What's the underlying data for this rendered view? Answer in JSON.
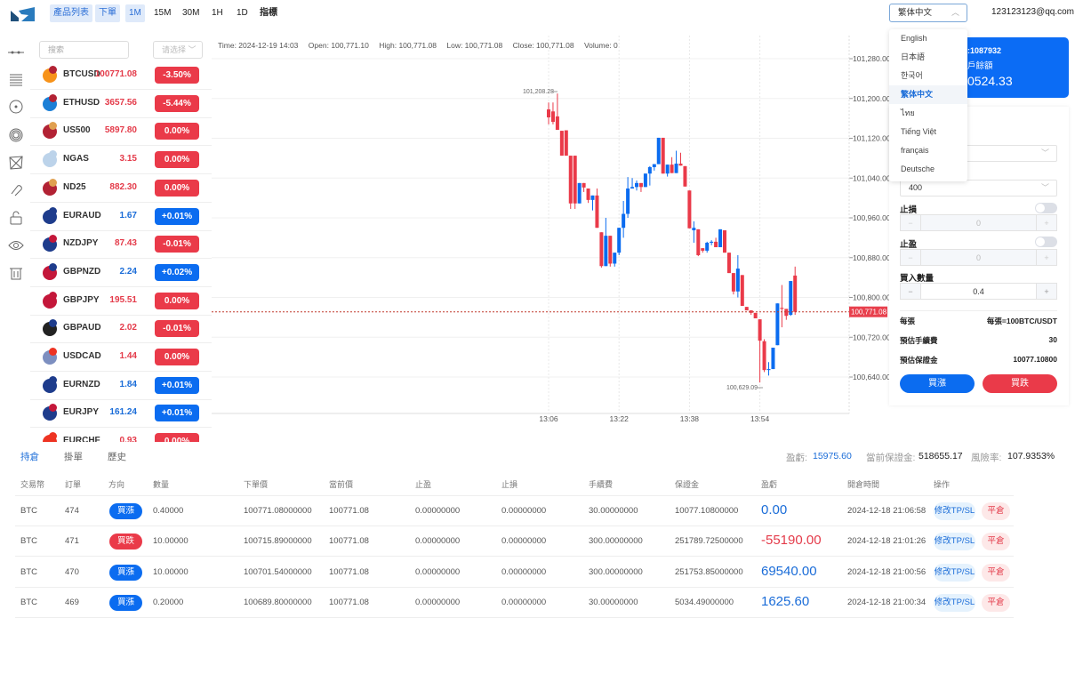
{
  "header": {
    "nav": [
      "產品列表",
      "下單",
      "1M",
      "15M",
      "30M",
      "1H",
      "1D",
      "指標"
    ],
    "language": "繁体中文",
    "email": "123123123@qq.com"
  },
  "language_menu": [
    "English",
    "日本語",
    "한국어",
    "繁体中文",
    "ไทย",
    "Tiếng Việt",
    "français",
    "Deutsche"
  ],
  "sidebar_tools": [
    "line-tool-icon",
    "horizontal-lines-icon",
    "circle-tool-icon",
    "target-icon",
    "network-icon",
    "magnet-icon",
    "unlock-icon",
    "eye-icon",
    "trash-icon"
  ],
  "search": {
    "placeholder": "搜索",
    "select_placeholder": "请选择"
  },
  "colors": {
    "red": "#ea3a49",
    "blue": "#0b6cf0"
  },
  "symbols": [
    {
      "sym": "BTCUSD",
      "price": "100771.08",
      "change": "-3.50%",
      "up": false,
      "f1": "#f7931a",
      "f2": "#b22234"
    },
    {
      "sym": "ETHUSD",
      "price": "3657.56",
      "change": "-5.44%",
      "up": false,
      "f1": "#1b7fd6",
      "f2": "#b22234"
    },
    {
      "sym": "US500",
      "price": "5897.80",
      "change": "0.00%",
      "up": false,
      "f1": "#b22234",
      "f2": "#e0a050"
    },
    {
      "sym": "NGAS",
      "price": "3.15",
      "change": "0.00%",
      "up": false,
      "f1": "#bcd3ea",
      "f2": "#bcd3ea"
    },
    {
      "sym": "ND25",
      "price": "882.30",
      "change": "0.00%",
      "up": false,
      "f1": "#b22234",
      "f2": "#e0a050"
    },
    {
      "sym": "EURAUD",
      "price": "1.67",
      "change": "+0.01%",
      "up": true,
      "f1": "#1e3c8c",
      "f2": "#1e3c8c"
    },
    {
      "sym": "NZDJPY",
      "price": "87.43",
      "change": "-0.01%",
      "up": false,
      "f1": "#1e3c8c",
      "f2": "#c4173a"
    },
    {
      "sym": "GBPNZD",
      "price": "2.24",
      "change": "+0.02%",
      "up": true,
      "f1": "#c4173a",
      "f2": "#1e3c8c"
    },
    {
      "sym": "GBPJPY",
      "price": "195.51",
      "change": "0.00%",
      "up": false,
      "f1": "#c4173a",
      "f2": "#c4173a"
    },
    {
      "sym": "GBPAUD",
      "price": "2.02",
      "change": "-0.01%",
      "up": false,
      "f1": "#222",
      "f2": "#1e3c8c"
    },
    {
      "sym": "USDCAD",
      "price": "1.44",
      "change": "0.00%",
      "up": false,
      "f1": "#7d8fc0",
      "f2": "#e32"
    },
    {
      "sym": "EURNZD",
      "price": "1.84",
      "change": "+0.01%",
      "up": true,
      "f1": "#1e3c8c",
      "f2": "#1e3c8c"
    },
    {
      "sym": "EURJPY",
      "price": "161.24",
      "change": "+0.01%",
      "up": true,
      "f1": "#1e3c8c",
      "f2": "#c4173a"
    },
    {
      "sym": "EURCHF",
      "price": "0.93",
      "change": "0.00%",
      "up": false,
      "f1": "#e32",
      "f2": "#e32"
    }
  ],
  "ohlc_info": {
    "time": "Time: 2024-12-19 14:03",
    "open": "Open: 100,771.10",
    "high": "High: 100,771.08",
    "low": "Low: 100,771.08",
    "close": "Close: 100,771.08",
    "volume": "Volume: 0"
  },
  "chart_data": {
    "type": "candlestick",
    "y_ticks": [
      101280,
      101200,
      101120,
      101040,
      100960,
      100880,
      100800,
      100720,
      100640
    ],
    "y_tick_labels": [
      "101,280.00",
      "101,200.00",
      "101,120.00",
      "101,040.00",
      "100,960.00",
      "100,880.00",
      "100,800.00",
      "100,720.00",
      "100,640.00"
    ],
    "x_ticks": [
      {
        "index": 0,
        "label": "13:06"
      },
      {
        "index": 16,
        "label": "13:22"
      },
      {
        "index": 32,
        "label": "13:38"
      },
      {
        "index": 48,
        "label": "13:54"
      }
    ],
    "current_price": 100771.08,
    "current_price_label": "100,771.08",
    "max_label": "101,208.28",
    "min_label": "100,629.09",
    "candles_ohlc": [
      [
        101178,
        101192,
        101148,
        101162
      ],
      [
        101174,
        101192,
        101148,
        101153
      ],
      [
        101164,
        101210,
        101137,
        101137
      ],
      [
        101135,
        101135,
        101085,
        101085
      ],
      [
        101136,
        101136,
        101085,
        101085
      ],
      [
        101085,
        101085,
        100978,
        100989
      ],
      [
        101085,
        101085,
        100978,
        100989
      ],
      [
        100989,
        101030,
        100989,
        101030
      ],
      [
        101030,
        101030,
        101012,
        101021
      ],
      [
        101019,
        101019,
        100990,
        100996
      ],
      [
        100996,
        101005,
        100975,
        101005
      ],
      [
        101005,
        101019,
        100940,
        100940
      ],
      [
        100931,
        100931,
        100860,
        100863
      ],
      [
        100863,
        100960,
        100863,
        100924
      ],
      [
        100924,
        100924,
        100862,
        100868
      ],
      [
        100868,
        100890,
        100862,
        100890
      ],
      [
        100890,
        100940,
        100885,
        100940
      ],
      [
        100940,
        100994,
        100920,
        100968
      ],
      [
        100968,
        101042,
        100960,
        101019
      ],
      [
        101019,
        101040,
        101019,
        101022
      ],
      [
        101022,
        101035,
        101015,
        101030
      ],
      [
        101030,
        101030,
        101012,
        101022
      ],
      [
        101022,
        101049,
        101022,
        101049
      ],
      [
        101049,
        101064,
        101025,
        101062
      ],
      [
        101062,
        101068,
        101055,
        101068
      ],
      [
        101068,
        101121,
        101068,
        101121
      ],
      [
        101121,
        101121,
        101049,
        101049
      ],
      [
        101049,
        101067,
        101043,
        101067
      ],
      [
        101067,
        101082,
        101050,
        101050
      ],
      [
        101050,
        101095,
        101050,
        101069
      ],
      [
        101069,
        101091,
        101065,
        101065
      ],
      [
        101064,
        101064,
        101023,
        101023
      ],
      [
        101015,
        101015,
        100939,
        100939
      ],
      [
        100935,
        100953,
        100910,
        100940
      ],
      [
        100937,
        100937,
        100883,
        100885
      ],
      [
        100899,
        100899,
        100890,
        100894
      ],
      [
        100894,
        100912,
        100890,
        100910
      ],
      [
        100910,
        100915,
        100905,
        100912
      ],
      [
        100912,
        100920,
        100901,
        100901
      ],
      [
        100901,
        100937,
        100901,
        100937
      ],
      [
        100935,
        100935,
        100890,
        100890
      ],
      [
        100890,
        100890,
        100849,
        100849
      ],
      [
        100849,
        100849,
        100806,
        100812
      ],
      [
        100812,
        100885,
        100800,
        100858
      ],
      [
        100845,
        100845,
        100783,
        100783
      ],
      [
        100781,
        100781,
        100774,
        100774
      ],
      [
        100774,
        100774,
        100765,
        100769
      ],
      [
        100769,
        100769,
        100758,
        100758
      ],
      [
        100756,
        100756,
        100629,
        100713
      ],
      [
        100712,
        100716,
        100650,
        100654
      ],
      [
        100654,
        100670,
        100643,
        100656
      ],
      [
        100656,
        100699,
        100656,
        100699
      ],
      [
        100704,
        100788,
        100704,
        100788
      ],
      [
        100779,
        100825,
        100740,
        100777
      ],
      [
        100777,
        100777,
        100755,
        100763
      ],
      [
        100765,
        100833,
        100763,
        100833
      ],
      [
        100844,
        100862,
        100765,
        100771
      ]
    ]
  },
  "account": {
    "id_fragment": ":1087932",
    "balance_label_fragment": "戶餘額",
    "balance_fragment": "0524.33"
  },
  "order": {
    "select2": "400",
    "stop_loss_label": "止損",
    "stop_loss_value": "0",
    "take_profit_label": "止盈",
    "take_profit_value": "0",
    "qty_label": "買入數量",
    "qty_value": "0.4",
    "minus": "−",
    "plus": "+",
    "per_lot_label": "每張",
    "per_lot_value": "每張=100BTC/USDT",
    "fee_label": "預估手續費",
    "fee_value": "30",
    "margin_label": "預估保證金",
    "margin_value": "10077.10800",
    "buy_up": "買漲",
    "buy_down": "買跌"
  },
  "positions": {
    "tabs": [
      "持倉",
      "掛單",
      "歷史"
    ],
    "summary": {
      "pnl_label": "盈虧:",
      "pnl": "15975.60",
      "margin_label": "當前保證金:",
      "margin": "518655.17",
      "risk_label": "風險率:",
      "risk": "107.9353%"
    },
    "columns": [
      "交易幣",
      "訂單",
      "方向",
      "數量",
      "下單價",
      "當前價",
      "止盈",
      "止損",
      "手續費",
      "保證金",
      "盈虧",
      "開倉時間",
      "操作"
    ],
    "rows": [
      {
        "coin": "BTC",
        "order": "474",
        "dir": "買漲",
        "up": true,
        "qty": "0.40000",
        "open": "100771.08000000",
        "cur": "100771.08",
        "tp": "0.00000000",
        "sl": "0.00000000",
        "fee": "30.00000000",
        "margin": "10077.10800000",
        "pnl": "0.00",
        "time": "2024-12-18 21:06:58"
      },
      {
        "coin": "BTC",
        "order": "471",
        "dir": "買跌",
        "up": false,
        "qty": "10.00000",
        "open": "100715.89000000",
        "cur": "100771.08",
        "tp": "0.00000000",
        "sl": "0.00000000",
        "fee": "300.00000000",
        "margin": "251789.72500000",
        "pnl": "-55190.00",
        "time": "2024-12-18 21:01:26"
      },
      {
        "coin": "BTC",
        "order": "470",
        "dir": "買漲",
        "up": true,
        "qty": "10.00000",
        "open": "100701.54000000",
        "cur": "100771.08",
        "tp": "0.00000000",
        "sl": "0.00000000",
        "fee": "300.00000000",
        "margin": "251753.85000000",
        "pnl": "69540.00",
        "time": "2024-12-18 21:00:56"
      },
      {
        "coin": "BTC",
        "order": "469",
        "dir": "買漲",
        "up": true,
        "qty": "0.20000",
        "open": "100689.80000000",
        "cur": "100771.08",
        "tp": "0.00000000",
        "sl": "0.00000000",
        "fee": "30.00000000",
        "margin": "5034.49000000",
        "pnl": "1625.60",
        "time": "2024-12-18 21:00:34"
      }
    ],
    "edit_label": "修改TP/SL",
    "close_label": "平倉"
  }
}
